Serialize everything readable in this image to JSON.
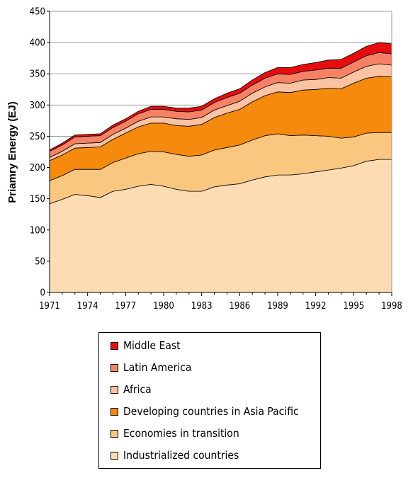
{
  "chart_data": {
    "type": "area",
    "stacked": true,
    "ylabel": "Priamry  Energy  (EJ)",
    "xlabel": "",
    "ylim": [
      0,
      450
    ],
    "yticks": [
      0,
      50,
      100,
      150,
      200,
      250,
      300,
      350,
      400,
      450
    ],
    "xlim": [
      1971,
      1998
    ],
    "xticks": [
      1971,
      1974,
      1977,
      1980,
      1983,
      1986,
      1989,
      1992,
      1995,
      1998
    ],
    "grid": "horizontal",
    "legend_position": "bottom",
    "x": [
      1971,
      1972,
      1973,
      1974,
      1975,
      1976,
      1977,
      1978,
      1979,
      1980,
      1981,
      1982,
      1983,
      1984,
      1985,
      1986,
      1987,
      1988,
      1989,
      1990,
      1991,
      1992,
      1993,
      1994,
      1995,
      1996,
      1997,
      1998
    ],
    "series": [
      {
        "name": "Industrialized countries",
        "color": "#fddcb4",
        "values": [
          142,
          149,
          157,
          155,
          152,
          162,
          165,
          170,
          173,
          170,
          165,
          162,
          162,
          169,
          172,
          174,
          180,
          185,
          188,
          188,
          190,
          193,
          196,
          199,
          203,
          210,
          213,
          213
        ]
      },
      {
        "name": "Economies in transition",
        "color": "#f9c77f",
        "values": [
          37,
          38,
          40,
          42,
          45,
          46,
          50,
          52,
          53,
          55,
          56,
          56,
          58,
          59,
          60,
          62,
          64,
          66,
          66,
          63,
          62,
          58,
          54,
          48,
          46,
          45,
          43,
          43
        ]
      },
      {
        "name": "Developing countries in Asia Pacific",
        "color": "#f68a0e",
        "values": [
          32,
          33,
          34,
          35,
          36,
          37,
          40,
          43,
          45,
          46,
          46,
          48,
          49,
          52,
          55,
          57,
          61,
          64,
          67,
          69,
          72,
          74,
          77,
          79,
          86,
          88,
          90,
          89
        ]
      },
      {
        "name": "Africa",
        "color": "#fbc3a1",
        "values": [
          5,
          6,
          7,
          7,
          7,
          8,
          8,
          9,
          10,
          10,
          11,
          11,
          11,
          12,
          12,
          13,
          14,
          14,
          15,
          15,
          16,
          16,
          17,
          17,
          18,
          19,
          20,
          19
        ]
      },
      {
        "name": "Latin America",
        "color": "#f68165",
        "values": [
          10,
          10,
          11,
          11,
          11,
          11,
          11,
          12,
          12,
          12,
          12,
          12,
          12,
          12,
          13,
          13,
          13,
          14,
          14,
          14,
          14,
          15,
          15,
          16,
          16,
          17,
          18,
          18
        ]
      },
      {
        "name": "Middle East",
        "color": "#e60d0d",
        "values": [
          2,
          3,
          3,
          3,
          3,
          4,
          4,
          4,
          5,
          5,
          5,
          6,
          6,
          6,
          7,
          7,
          8,
          9,
          10,
          11,
          11,
          12,
          13,
          14,
          14,
          15,
          16,
          16
        ]
      }
    ]
  }
}
